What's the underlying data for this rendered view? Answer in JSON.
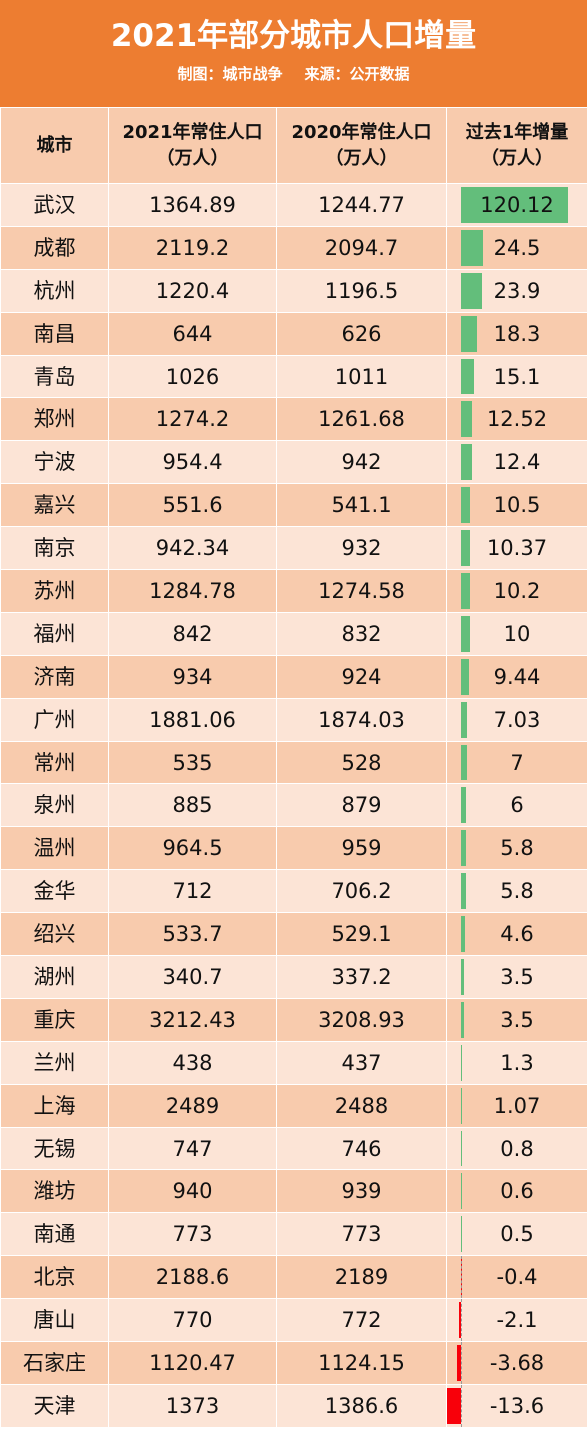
{
  "header": {
    "title": "2021年部分城市人口增量",
    "credit": "制图：城市战争",
    "source": "来源：公开数据"
  },
  "table": {
    "columns": [
      "城市",
      "2021年常住人口（万人）",
      "2020年常住人口（万人）",
      "过去1年增量（万人）"
    ],
    "column_lines": [
      [
        "城市"
      ],
      [
        "2021年常住人口",
        "（万人）"
      ],
      [
        "2020年常住人口",
        "（万人）"
      ],
      [
        "过去1年增量",
        "（万人）"
      ]
    ],
    "rows": [
      {
        "city": "武汉",
        "pop2021": "1364.89",
        "pop2020": "1244.77",
        "increase": "120.12"
      },
      {
        "city": "成都",
        "pop2021": "2119.2",
        "pop2020": "2094.7",
        "increase": "24.5"
      },
      {
        "city": "杭州",
        "pop2021": "1220.4",
        "pop2020": "1196.5",
        "increase": "23.9"
      },
      {
        "city": "南昌",
        "pop2021": "644",
        "pop2020": "626",
        "increase": "18.3"
      },
      {
        "city": "青岛",
        "pop2021": "1026",
        "pop2020": "1011",
        "increase": "15.1"
      },
      {
        "city": "郑州",
        "pop2021": "1274.2",
        "pop2020": "1261.68",
        "increase": "12.52"
      },
      {
        "city": "宁波",
        "pop2021": "954.4",
        "pop2020": "942",
        "increase": "12.4"
      },
      {
        "city": "嘉兴",
        "pop2021": "551.6",
        "pop2020": "541.1",
        "increase": "10.5"
      },
      {
        "city": "南京",
        "pop2021": "942.34",
        "pop2020": "932",
        "increase": "10.37"
      },
      {
        "city": "苏州",
        "pop2021": "1284.78",
        "pop2020": "1274.58",
        "increase": "10.2"
      },
      {
        "city": "福州",
        "pop2021": "842",
        "pop2020": "832",
        "increase": "10"
      },
      {
        "city": "济南",
        "pop2021": "934",
        "pop2020": "924",
        "increase": "9.44"
      },
      {
        "city": "广州",
        "pop2021": "1881.06",
        "pop2020": "1874.03",
        "increase": "7.03"
      },
      {
        "city": "常州",
        "pop2021": "535",
        "pop2020": "528",
        "increase": "7"
      },
      {
        "city": "泉州",
        "pop2021": "885",
        "pop2020": "879",
        "increase": "6"
      },
      {
        "city": "温州",
        "pop2021": "964.5",
        "pop2020": "959",
        "increase": "5.8"
      },
      {
        "city": "金华",
        "pop2021": "712",
        "pop2020": "706.2",
        "increase": "5.8"
      },
      {
        "city": "绍兴",
        "pop2021": "533.7",
        "pop2020": "529.1",
        "increase": "4.6"
      },
      {
        "city": "湖州",
        "pop2021": "340.7",
        "pop2020": "337.2",
        "increase": "3.5"
      },
      {
        "city": "重庆",
        "pop2021": "3212.43",
        "pop2020": "3208.93",
        "increase": "3.5"
      },
      {
        "city": "兰州",
        "pop2021": "438",
        "pop2020": "437",
        "increase": "1.3"
      },
      {
        "city": "上海",
        "pop2021": "2489",
        "pop2020": "2488",
        "increase": "1.07"
      },
      {
        "city": "无锡",
        "pop2021": "747",
        "pop2020": "746",
        "increase": "0.8"
      },
      {
        "city": "潍坊",
        "pop2021": "940",
        "pop2020": "939",
        "increase": "0.6"
      },
      {
        "city": "南通",
        "pop2021": "773",
        "pop2020": "773",
        "increase": "0.5"
      },
      {
        "city": "北京",
        "pop2021": "2188.6",
        "pop2020": "2189",
        "increase": "-0.4"
      },
      {
        "city": "唐山",
        "pop2021": "770",
        "pop2020": "772",
        "increase": "-2.1"
      },
      {
        "city": "石家庄",
        "pop2021": "1120.47",
        "pop2020": "1124.15",
        "increase": "-3.68"
      },
      {
        "city": "天津",
        "pop2021": "1373",
        "pop2020": "1386.6",
        "increase": "-13.6"
      }
    ]
  },
  "colors": {
    "header_bg": "#ED7D31",
    "row_light": "#FCE4D6",
    "row_dark": "#F8CBAD",
    "bar_positive": "#63BE7B",
    "bar_negative": "#F8000A"
  }
}
